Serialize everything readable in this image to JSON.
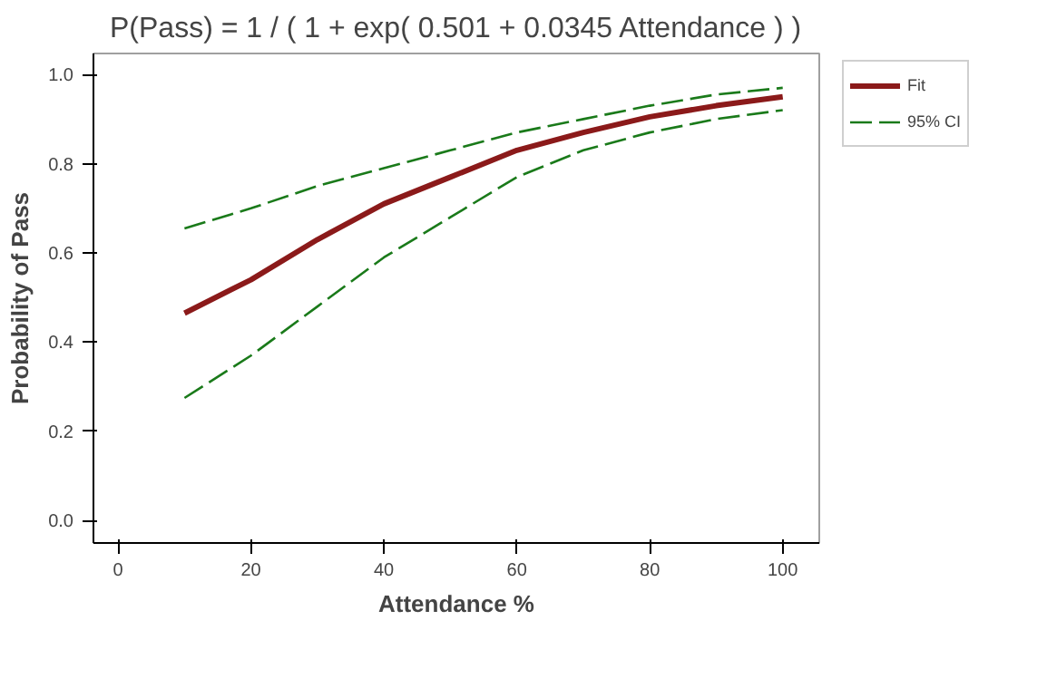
{
  "chart_data": {
    "type": "line",
    "title": "P(Pass) = 1 / ( 1 + exp( 0.501 + 0.0345 Attendance ) )",
    "xlabel": "Attendance %",
    "ylabel": "Probability of Pass",
    "x": [
      10,
      20,
      30,
      40,
      50,
      60,
      70,
      80,
      90,
      100
    ],
    "series": [
      {
        "name": "Fit",
        "color": "#8b1a1a",
        "line_style": "solid",
        "values": [
          0.465,
          0.54,
          0.63,
          0.71,
          0.77,
          0.83,
          0.87,
          0.905,
          0.93,
          0.95
        ]
      },
      {
        "name": "95% CI",
        "color": "#1a7a1a",
        "line_style": "dashed",
        "values": [
          0.655,
          0.7,
          0.75,
          0.79,
          0.83,
          0.87,
          0.9,
          0.93,
          0.955,
          0.97
        ]
      },
      {
        "color": "#1a7a1a",
        "line_style": "dashed",
        "values": [
          0.275,
          0.37,
          0.48,
          0.59,
          0.68,
          0.77,
          0.83,
          0.87,
          0.9,
          0.92
        ]
      }
    ],
    "xlim": [
      -3.7,
      105.5
    ],
    "ylim": [
      -0.05,
      1.047
    ],
    "xticks": [
      0,
      20,
      40,
      60,
      80,
      100
    ],
    "yticks": [
      {
        "value": 0,
        "label": "0.0"
      },
      0.2,
      0.4,
      0.6,
      0.8,
      {
        "value": 1,
        "label": "1.0"
      }
    ],
    "grid": false,
    "legend": "top right",
    "marker": "none"
  }
}
